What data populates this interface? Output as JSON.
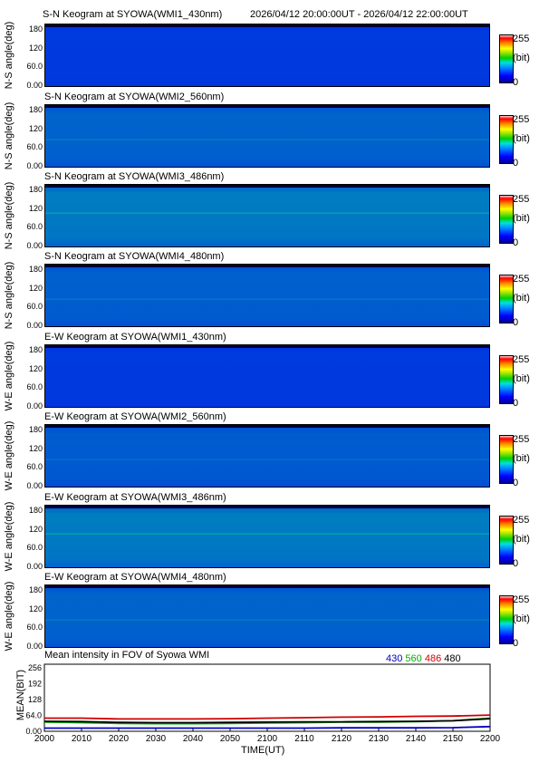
{
  "header_time_range": "2026/04/12 20:00:00UT - 2026/04/12 22:00:00UT",
  "keograms": [
    {
      "title": "S-N Keogram at SYOWA(WMI1_430nm)",
      "ylabel": "N-S angle(deg)",
      "brightness": 0.1,
      "color_scale": {
        "max": "255",
        "unit": "(bit)",
        "min": "0"
      }
    },
    {
      "title": "S-N Keogram at SYOWA(WMI2_560nm)",
      "ylabel": "N-S angle(deg)",
      "brightness": 0.32,
      "color_scale": {
        "max": "255",
        "unit": "(bit)",
        "min": "0"
      }
    },
    {
      "title": "S-N Keogram at SYOWA(WMI3_486nm)",
      "ylabel": "N-S angle(deg)",
      "brightness": 0.45,
      "color_scale": {
        "max": "255",
        "unit": "(bit)",
        "min": "0"
      }
    },
    {
      "title": "S-N Keogram at SYOWA(WMI4_480nm)",
      "ylabel": "N-S angle(deg)",
      "brightness": 0.3,
      "color_scale": {
        "max": "255",
        "unit": "(bit)",
        "min": "0"
      }
    },
    {
      "title": "E-W Keogram at SYOWA(WMI1_430nm)",
      "ylabel": "W-E angle(deg)",
      "brightness": 0.1,
      "color_scale": {
        "max": "255",
        "unit": "(bit)",
        "min": "0"
      }
    },
    {
      "title": "E-W Keogram at SYOWA(WMI2_560nm)",
      "ylabel": "W-E angle(deg)",
      "brightness": 0.28,
      "color_scale": {
        "max": "255",
        "unit": "(bit)",
        "min": "0"
      }
    },
    {
      "title": "E-W Keogram at SYOWA(WMI3_486nm)",
      "ylabel": "W-E angle(deg)",
      "brightness": 0.45,
      "color_scale": {
        "max": "255",
        "unit": "(bit)",
        "min": "0"
      }
    },
    {
      "title": "E-W Keogram at SYOWA(WMI4_480nm)",
      "ylabel": "W-E angle(deg)",
      "brightness": 0.32,
      "color_scale": {
        "max": "255",
        "unit": "(bit)",
        "min": "0"
      }
    }
  ],
  "keogram_yticks": [
    "180",
    "120",
    "60.0",
    "0.00"
  ],
  "mean_panel": {
    "title": "Mean intensity in FOV of Syowa WMI",
    "legend": [
      {
        "label": "430",
        "color": "#0000c0"
      },
      {
        "label": "560",
        "color": "#00b000"
      },
      {
        "label": "486",
        "color": "#d00000"
      },
      {
        "label": "480",
        "color": "#000000"
      }
    ],
    "ylabel": "MEAN(BIT)",
    "xlabel": "TIME(UT)"
  },
  "chart_data": {
    "type": "line",
    "title": "Mean intensity in FOV of Syowa WMI",
    "xlabel": "TIME(UT)",
    "ylabel": "MEAN(BIT)",
    "x_ticks": [
      "2000",
      "2010",
      "2020",
      "2030",
      "2040",
      "2050",
      "2100",
      "2110",
      "2120",
      "2130",
      "2140",
      "2150",
      "2200"
    ],
    "y_ticks": [
      "256",
      "192",
      "128",
      "64.0",
      "0.00"
    ],
    "ylim": [
      0,
      256
    ],
    "x_minutes": [
      0,
      10,
      20,
      30,
      40,
      50,
      60,
      70,
      80,
      90,
      100,
      110,
      120
    ],
    "series": [
      {
        "name": "430",
        "color": "#0000c0",
        "values": [
          12,
          12,
          12,
          12,
          12,
          12,
          12,
          12,
          13,
          13,
          13,
          14,
          18
        ]
      },
      {
        "name": "560",
        "color": "#00b000",
        "values": [
          35,
          33,
          30,
          29,
          29,
          30,
          32,
          33,
          35,
          35,
          37,
          40,
          50
        ]
      },
      {
        "name": "486",
        "color": "#d00000",
        "values": [
          50,
          50,
          47,
          47,
          47,
          48,
          50,
          52,
          54,
          55,
          57,
          58,
          62
        ]
      },
      {
        "name": "480",
        "color": "#000000",
        "values": [
          38,
          37,
          34,
          33,
          33,
          34,
          35,
          36,
          36,
          37,
          38,
          40,
          48
        ]
      }
    ]
  }
}
